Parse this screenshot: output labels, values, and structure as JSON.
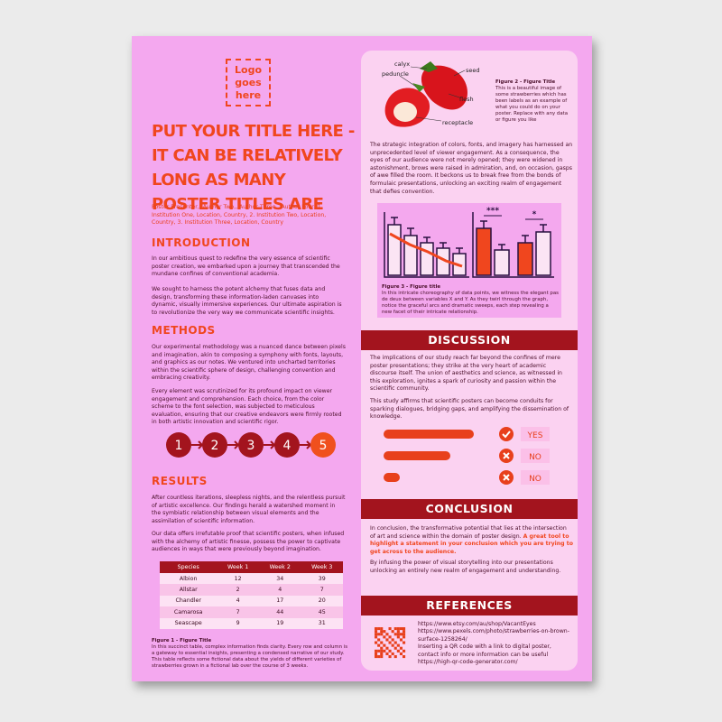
{
  "logo": "Logo goes here",
  "title": "PUT YOUR TITLE HERE - IT CAN BE RELATIVELY LONG AS MANY POSTER TITLES ARE",
  "authors": "Poster Presenter,, Author Two,, Author Three,, Author Four, 1. Institution One, Location, Country, 2. Institution Two, Location, Country, 3. Institution Three, Location, Country",
  "introduction": {
    "heading": "INTRODUCTION",
    "paragraphs": [
      "In our ambitious quest to redefine the very essence of scientific poster creation, we embarked upon a journey that transcended the mundane confines of conventional academia.",
      "We sought to harness the potent alchemy that fuses data and design, transforming these information-laden canvases into dynamic, visually immersive experiences. Our ultimate aspiration is to revolutionize the very way we communicate scientific insights."
    ]
  },
  "methods": {
    "heading": "METHODS",
    "paragraphs": [
      "Our experimental methodology was a nuanced dance between pixels and imagination, akin to composing a symphony with fonts, layouts, and graphics as our notes. We ventured into uncharted territories within the scientific sphere of design, challenging convention and embracing creativity.",
      "Every element was scrutinized for its profound impact on viewer engagement and comprehension. Each choice, from the color scheme to the font selection, was subjected to meticulous evaluation, ensuring that our creative endeavors were firmly rooted in both artistic innovation and scientific rigor."
    ],
    "steps": [
      "1",
      "2",
      "3",
      "4",
      "5"
    ]
  },
  "results": {
    "heading": "RESULTS",
    "paragraphs": [
      "After countless iterations, sleepless nights, and the relentless pursuit of artistic excellence. Our findings herald a watershed moment in the symbiatic relationship between visual elements and the assimilation of scientific information.",
      "Our data offers irrefutable proof that scientific posters, when infused with the alchemy of artistic finesse, possess the power to captivate audiences in ways that were previously beyond imagination."
    ]
  },
  "table": {
    "header": [
      "Species",
      "Week 1",
      "Week 2",
      "Week 3"
    ],
    "rows": [
      [
        "Albion",
        12,
        34,
        39
      ],
      [
        "Allstar",
        2,
        4,
        7
      ],
      [
        "Chandler",
        4,
        17,
        20
      ],
      [
        "Camarosa",
        7,
        44,
        45
      ],
      [
        "Seascape",
        9,
        19,
        31
      ]
    ]
  },
  "figure1": {
    "title": "Figure 1 - Figure Title",
    "text": "In this succinct table, complex information finds clarity. Every row and column is a gateway to essential insights, presenting a condensed narrative of our study. This table reflects some fictional data about the yields of different varieties of strawberries grown in a fictional lab over the course of 3 weeks."
  },
  "figure2": {
    "labels": [
      "calyx",
      "peduncle",
      "seed",
      "flesh",
      "receptacle"
    ],
    "title": "Figure 2 - Figure Title",
    "text": "This is a beautiful image of some strawberries which has been labels as an example of what you could do on your poster. Replace with any data or figure you like"
  },
  "engagement": "The strategic integration of colors, fonts, and imagery has harnessed an unprecedented level of viewer engagement. As a consequence, the eyes of our audience were not merely opened; they were widened in astonishment, brows were raised in admiration, and, on occasion, gasps of awe filled the room.  It beckons us to break free from the bonds of formulaic presentations, unlocking an exciting realm of engagement that defies convention.",
  "figure3": {
    "annotations": [
      "***",
      "*"
    ],
    "title": "Figure 3 - Figure title",
    "text": "In this intricate choreography of data points, we witness the elegant pas de deux between variables X and Y. As they twirl through the graph, notice the graceful arcs and dramatic sweeps, each step revealing a new facet of their intricate relationship."
  },
  "discussion": {
    "heading": "DISCUSSION",
    "paragraphs": [
      "The implications of our study reach far beyond the confines of mere poster presentations; they strike at the very heart of academic discourse itself. The union of aesthetics and science, as witnessed in this exploration, ignites a spark of curiosity and passion within the scientific community.",
      "This study affirms that scientific posters can become conduits for sparking dialogues, bridging gaps, and amplifying the dissemination of knowledge."
    ],
    "answers": [
      "YES",
      "NO",
      "NO"
    ]
  },
  "conclusion": {
    "heading": "CONCLUSION",
    "paragraph1": "In conclusion, the transformative potential that lies at the intersection of art and science within the domain of poster design. ",
    "highlight": "A great tool to highlight a statement in your conclusion which you are trying to get across to the audience.",
    "paragraph2": "By infusing the power of visual storytelling into our presentations unlocking an entirely new realm of engagement and understanding."
  },
  "references": {
    "heading": "REFERENCES",
    "items": [
      "https://www.etsy.com/au/shop/VacantEyes",
      "https://www.pexels.com/photo/strawberries-on-brown-surface-1258264/",
      "Inserting a QR code with a link to digital poster, contact info or more information can be useful",
      "https://high-qr-code-generator.com/"
    ]
  }
}
